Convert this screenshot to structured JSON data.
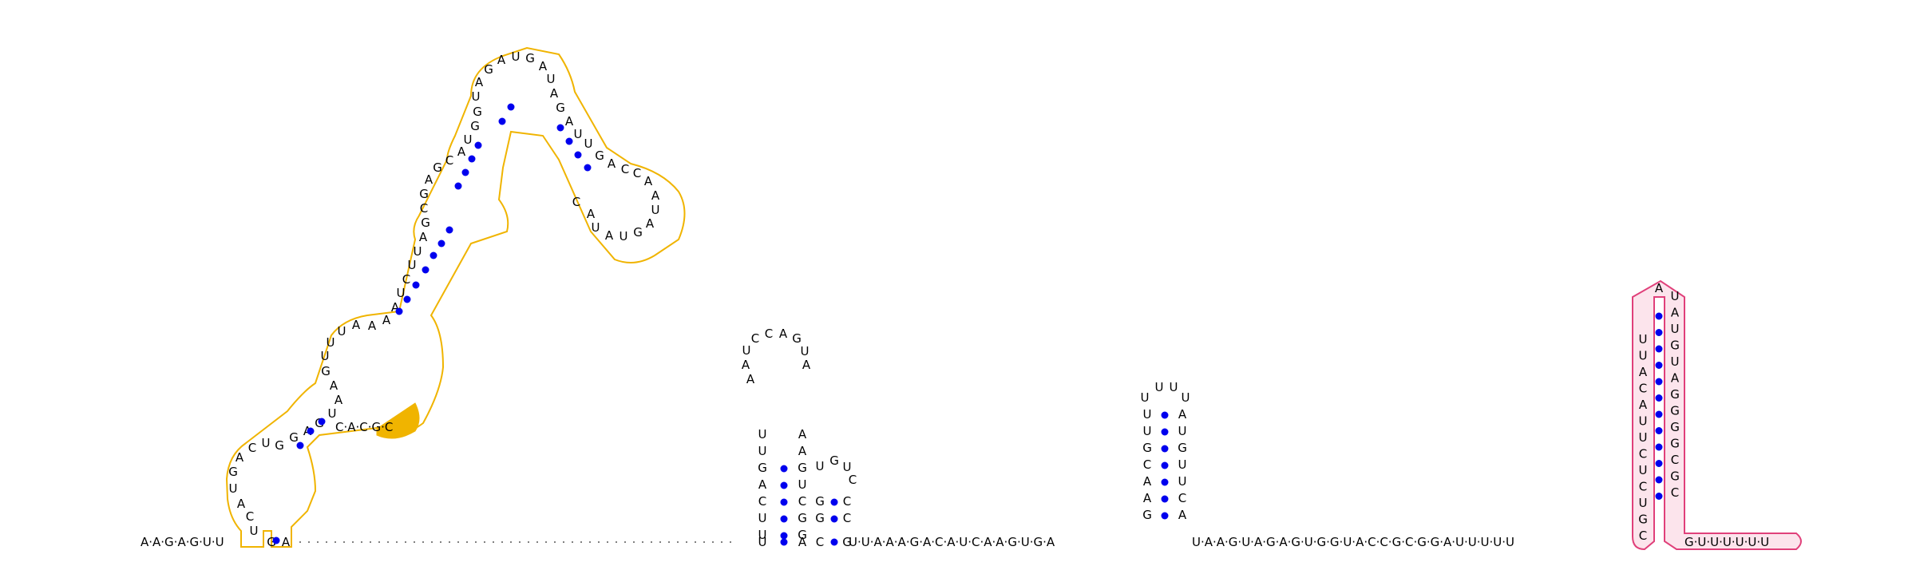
{
  "colors": {
    "pair_dot": "#0000ee",
    "orange_outline": "#f0b400",
    "orange_fill": "#f0b400",
    "pink_outline": "#e0407a",
    "pink_fill": "#fce4ec",
    "text": "#000000"
  },
  "domain1": {
    "prefix": "A·A·G·A·G·U·U",
    "mid": "C·A·C·G·C",
    "bases": [
      "U",
      "C",
      "A",
      "U",
      "G",
      "A",
      "C",
      "U",
      "G",
      "G",
      "A",
      "G",
      "U",
      "A",
      "A",
      "G",
      "U",
      "U",
      "U",
      "A",
      "A",
      "A",
      "A",
      "U",
      "C",
      "U",
      "U",
      "A",
      "G",
      "C",
      "G",
      "A",
      "G",
      "C",
      "A",
      "U",
      "G",
      "G",
      "U",
      "A",
      "G",
      "A",
      "U",
      "G",
      "A",
      "U",
      "A",
      "G",
      "A",
      "U",
      "U",
      "G",
      "A",
      "C",
      "C",
      "A",
      "A",
      "U",
      "A",
      "G",
      "U",
      "A",
      "U",
      "A",
      "C"
    ]
  },
  "hairpin2": {
    "stem_left": [
      "U",
      "U",
      "C",
      "A",
      "G",
      "U",
      "U"
    ],
    "loop": [
      "A",
      "A",
      "U",
      "C",
      "C",
      "A",
      "G",
      "U",
      "A"
    ],
    "stem_right": [
      "G",
      "G",
      "C",
      "U",
      "G",
      "A",
      "A"
    ],
    "small_stem_top": [
      "U",
      "G",
      "U",
      "C"
    ],
    "small_stem_left": [
      "G",
      "G"
    ],
    "small_stem_right": [
      "C",
      "C"
    ],
    "bottom": [
      "U",
      "U",
      "A",
      "C",
      "G"
    ]
  },
  "hairpin3": {
    "stem_left": [
      "U",
      "U",
      "G",
      "C",
      "A",
      "A",
      "G"
    ],
    "loop": [
      "U",
      "U"
    ],
    "stem_right": [
      "A",
      "U",
      "G",
      "U",
      "U",
      "C",
      "A"
    ]
  },
  "linker": "U·U·A·A·A·G·A·C·A·U·C·A·A·G·U·G·A",
  "linker2": "U·A·A·G·U·A·G·A·G·U·G·G·U·A·C·C·G·C·G·G·A·U·U·U·U·U",
  "terminator": {
    "stem_left": [
      "C",
      "G",
      "U",
      "C",
      "U",
      "C",
      "U",
      "U",
      "A",
      "C",
      "A",
      "U",
      "U"
    ],
    "loop": [
      "A"
    ],
    "stem_right": [
      "U",
      "A",
      "U",
      "G",
      "U",
      "A",
      "G",
      "G",
      "G",
      "G",
      "C",
      "G",
      "C"
    ],
    "tail": "G·U·U·U·U·U·U"
  }
}
